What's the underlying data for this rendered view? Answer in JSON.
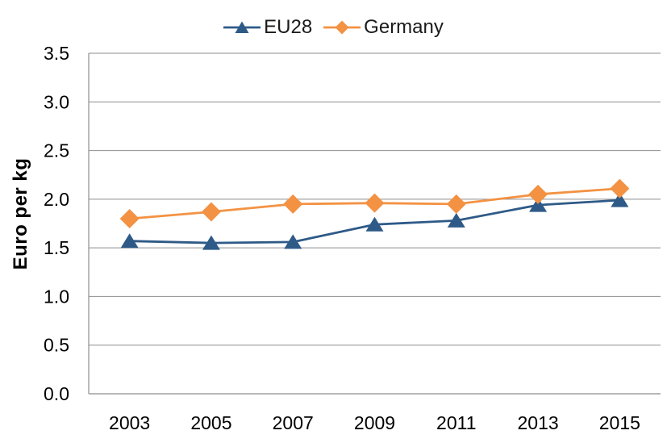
{
  "chart_data": {
    "type": "line",
    "title": "",
    "xlabel": "",
    "ylabel": "Euro per kg",
    "categories": [
      "2003",
      "2005",
      "2007",
      "2009",
      "2011",
      "2013",
      "2015"
    ],
    "series": [
      {
        "name": "EU28",
        "marker": "triangle",
        "color": "#2E5A87",
        "values": [
          1.57,
          1.55,
          1.56,
          1.74,
          1.78,
          1.94,
          1.99
        ]
      },
      {
        "name": "Germany",
        "marker": "diamond",
        "color": "#F39243",
        "values": [
          1.8,
          1.87,
          1.95,
          1.96,
          1.95,
          2.05,
          2.11
        ]
      }
    ],
    "ylim": [
      0.0,
      3.5
    ],
    "yticks": [
      0.0,
      0.5,
      1.0,
      1.5,
      2.0,
      2.5,
      3.0,
      3.5
    ],
    "ytick_format_decimals": 1,
    "grid": true,
    "legend_position": "top-center"
  },
  "colors": {
    "background": "#ffffff",
    "gridline": "#8E8E8E",
    "axis": "#8E8E8E",
    "tick_text": "#000000",
    "legend_text": "#1a1a1a"
  }
}
